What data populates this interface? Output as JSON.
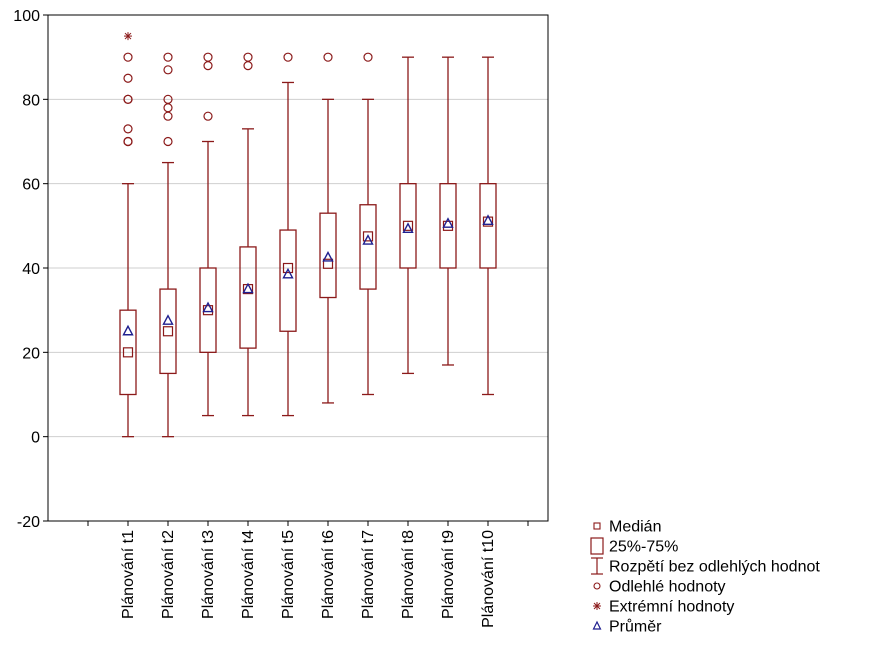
{
  "colors": {
    "box": "#8b1a1a",
    "mean": "#1f1f8f",
    "grid": "#cfcfcf",
    "axis": "#000000"
  },
  "legend": [
    {
      "key": "median",
      "label": "Medián",
      "icon": "small-square-icon"
    },
    {
      "key": "box",
      "label": "25%-75%",
      "icon": "box-icon"
    },
    {
      "key": "whisker",
      "label": "Rozpětí bez odlehlých hodnot",
      "icon": "whisker-icon"
    },
    {
      "key": "outlier",
      "label": "Odlehlé hodnoty",
      "icon": "circle-icon"
    },
    {
      "key": "extreme",
      "label": "Extrémní hodnoty",
      "icon": "asterisk-icon"
    },
    {
      "key": "mean",
      "label": "Průměr",
      "icon": "triangle-icon"
    }
  ],
  "chart_data": {
    "type": "boxplot",
    "title": "",
    "xlabel": "",
    "ylabel": "",
    "ylim": [
      -20,
      100
    ],
    "yticks": [
      -20,
      0,
      20,
      40,
      60,
      80,
      100
    ],
    "grid": true,
    "legend_position": "bottom-right",
    "categories": [
      "Plánování t1",
      "Plánování  t2",
      "Plánování t3",
      "Plánování t4",
      "Plánování t5",
      "Plánování t6",
      "Plánování t7",
      "Plánování t8",
      "Plánování t9",
      "Plánování t10"
    ],
    "boxes": [
      {
        "min": 0,
        "q1": 10,
        "median": 20,
        "q3": 30,
        "max": 60,
        "mean": 25,
        "outliers": [
          70,
          70,
          73,
          80,
          80,
          85,
          90
        ],
        "extremes": [
          95
        ]
      },
      {
        "min": 0,
        "q1": 15,
        "median": 25,
        "q3": 35,
        "max": 65,
        "mean": 27.5,
        "outliers": [
          70,
          76,
          78,
          80,
          87,
          90
        ],
        "extremes": []
      },
      {
        "min": 5,
        "q1": 20,
        "median": 30,
        "q3": 40,
        "max": 70,
        "mean": 30.5,
        "outliers": [
          76,
          88,
          90
        ],
        "extremes": []
      },
      {
        "min": 5,
        "q1": 21,
        "median": 35,
        "q3": 45,
        "max": 73,
        "mean": 35,
        "outliers": [
          88,
          90
        ],
        "extremes": []
      },
      {
        "min": 5,
        "q1": 25,
        "median": 40,
        "q3": 49,
        "max": 84,
        "mean": 38.5,
        "outliers": [
          90
        ],
        "extremes": []
      },
      {
        "min": 8,
        "q1": 33,
        "median": 41,
        "q3": 53,
        "max": 80,
        "mean": 42.5,
        "outliers": [
          90
        ],
        "extremes": []
      },
      {
        "min": 10,
        "q1": 35,
        "median": 47.5,
        "q3": 55,
        "max": 80,
        "mean": 46.5,
        "outliers": [
          90
        ],
        "extremes": []
      },
      {
        "min": 15,
        "q1": 40,
        "median": 50,
        "q3": 60,
        "max": 90,
        "mean": 49.3,
        "outliers": [],
        "extremes": []
      },
      {
        "min": 17,
        "q1": 40,
        "median": 50,
        "q3": 60,
        "max": 90,
        "mean": 50.5,
        "outliers": [],
        "extremes": []
      },
      {
        "min": 10,
        "q1": 40,
        "median": 51,
        "q3": 60,
        "max": 90,
        "mean": 51.2,
        "outliers": [],
        "extremes": []
      }
    ]
  }
}
